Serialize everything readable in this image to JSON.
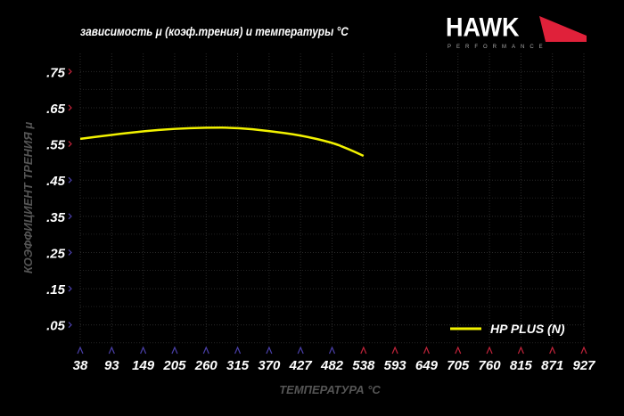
{
  "brand": {
    "name": "HAWK",
    "sub": "PERFORMANCE",
    "accent": "#e0213a"
  },
  "chart_data": {
    "type": "line",
    "title": "зависимость μ (коэф.трения) и температуры °C",
    "xlabel": "ТЕМПЕРАТУРА °C",
    "ylabel": "КОЭФФИЦИЕНТ ТРЕНИЯ μ",
    "x_ticks": [
      "38",
      "93",
      "149",
      "205",
      "260",
      "315",
      "370",
      "427",
      "482",
      "538",
      "593",
      "649",
      "705",
      "760",
      "815",
      "871",
      "927"
    ],
    "y_ticks": [
      ".75",
      ".65",
      ".55",
      ".45",
      ".35",
      ".25",
      ".15",
      ".05"
    ],
    "xlim": [
      38,
      927
    ],
    "ylim": [
      0,
      0.8
    ],
    "grid": true,
    "legend": "bottom-right",
    "series": [
      {
        "name": "HP PLUS (N)",
        "color": "#f2f200",
        "x": [
          38,
          93,
          149,
          205,
          260,
          315,
          370,
          427,
          482,
          510,
          538
        ],
        "y": [
          0.564,
          0.575,
          0.585,
          0.592,
          0.595,
          0.595,
          0.586,
          0.574,
          0.554,
          0.537,
          0.517
        ]
      }
    ]
  }
}
